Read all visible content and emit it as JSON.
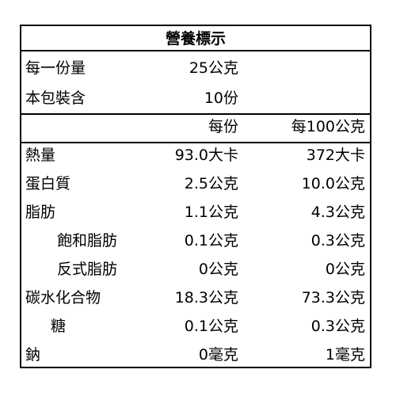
{
  "label": {
    "title": "營養標示",
    "serving_size": {
      "label": "每一份量",
      "value": "25公克"
    },
    "servings_per_package": {
      "label": "本包裝含",
      "value": "10份"
    },
    "columns": {
      "per_serving": "每份",
      "per_100g": "每100公克"
    },
    "nutrients": [
      {
        "name": "熱量",
        "per_serving": "93.0大卡",
        "per_100g": "372大卡"
      },
      {
        "name": "蛋白質",
        "per_serving": "2.5公克",
        "per_100g": "10.0公克"
      },
      {
        "name": "脂肪",
        "per_serving": "1.1公克",
        "per_100g": "4.3公克"
      },
      {
        "name": "飽和脂肪",
        "per_serving": "0.1公克",
        "per_100g": "0.3公克"
      },
      {
        "name": "反式脂肪",
        "per_serving": "0公克",
        "per_100g": "0公克"
      },
      {
        "name": "碳水化合物",
        "per_serving": "18.3公克",
        "per_100g": "73.3公克"
      },
      {
        "name": "糖",
        "per_serving": "0.1公克",
        "per_100g": "0.3公克"
      },
      {
        "name": "鈉",
        "per_serving": "0毫克",
        "per_100g": "1毫克"
      }
    ]
  }
}
